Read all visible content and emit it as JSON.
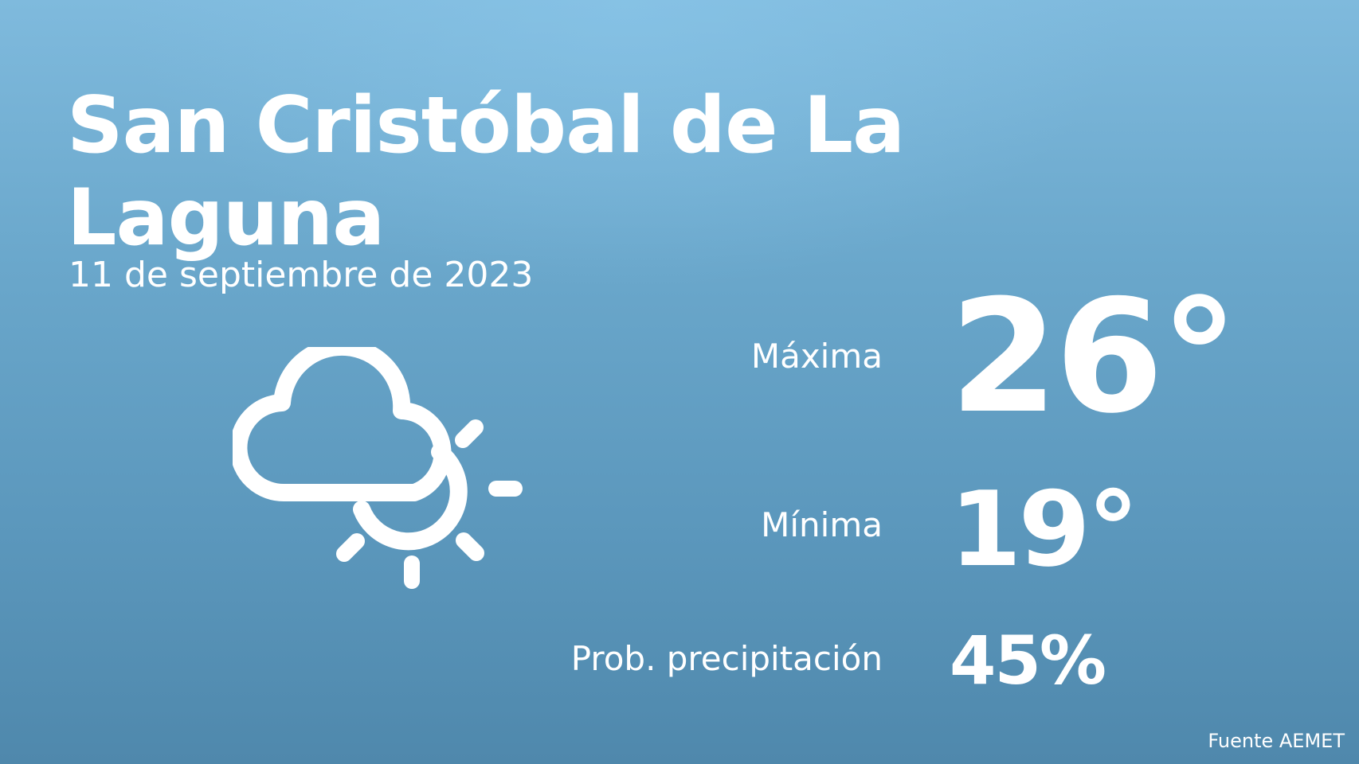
{
  "location": {
    "name": "San Cristóbal de La Laguna",
    "date": "11 de septiembre de 2023"
  },
  "forecast": {
    "icon": "cloud-sun-icon",
    "max_label": "Máxima",
    "max_value": "26°",
    "min_label": "Mínima",
    "min_value": "19°",
    "precip_label": "Prob. precipitación",
    "precip_value": "45%"
  },
  "footer": {
    "source": "Fuente AEMET"
  },
  "colors": {
    "background_top": "#7fbadd",
    "background_bottom": "#4f88ac",
    "text": "#ffffff"
  }
}
